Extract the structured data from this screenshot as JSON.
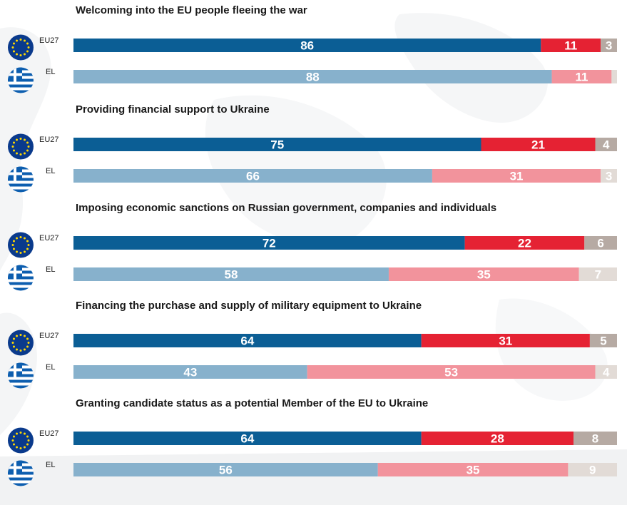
{
  "chart_data": {
    "type": "bar",
    "orientation": "horizontal",
    "stacked": true,
    "xlim": [
      0,
      100
    ],
    "grid": false,
    "legend": "none",
    "questions": [
      {
        "title": "Welcoming into the EU people fleeing the war",
        "rows": [
          {
            "label": "EU27",
            "flag": "eu-flag-icon",
            "values": [
              86,
              11,
              3
            ],
            "labels": [
              "86",
              "11",
              "3"
            ]
          },
          {
            "label": "EL",
            "flag": "greece-flag-icon",
            "values": [
              88,
              11,
              1
            ],
            "labels": [
              "88",
              "11",
              ""
            ]
          }
        ]
      },
      {
        "title": "Providing financial support to Ukraine",
        "rows": [
          {
            "label": "EU27",
            "flag": "eu-flag-icon",
            "values": [
              75,
              21,
              4
            ],
            "labels": [
              "75",
              "21",
              "4"
            ]
          },
          {
            "label": "EL",
            "flag": "greece-flag-icon",
            "values": [
              66,
              31,
              3
            ],
            "labels": [
              "66",
              "31",
              "3"
            ]
          }
        ]
      },
      {
        "title": "Imposing economic sanctions on Russian government, companies and individuals",
        "rows": [
          {
            "label": "EU27",
            "flag": "eu-flag-icon",
            "values": [
              72,
              22,
              6
            ],
            "labels": [
              "72",
              "22",
              "6"
            ]
          },
          {
            "label": "EL",
            "flag": "greece-flag-icon",
            "values": [
              58,
              35,
              7
            ],
            "labels": [
              "58",
              "35",
              "7"
            ]
          }
        ]
      },
      {
        "title": "Financing the purchase and supply of military equipment to Ukraine",
        "rows": [
          {
            "label": "EU27",
            "flag": "eu-flag-icon",
            "values": [
              64,
              31,
              5
            ],
            "labels": [
              "64",
              "31",
              "5"
            ]
          },
          {
            "label": "EL",
            "flag": "greece-flag-icon",
            "values": [
              43,
              53,
              4
            ],
            "labels": [
              "43",
              "53",
              "4"
            ]
          }
        ]
      },
      {
        "title": "Granting candidate status as a potential Member of the EU to Ukraine",
        "rows": [
          {
            "label": "EU27",
            "flag": "eu-flag-icon",
            "values": [
              64,
              28,
              8
            ],
            "labels": [
              "64",
              "28",
              "8"
            ]
          },
          {
            "label": "EL",
            "flag": "greece-flag-icon",
            "values": [
              56,
              35,
              9
            ],
            "labels": [
              "56",
              "35",
              "9"
            ]
          }
        ]
      }
    ],
    "colors": {
      "EU27": [
        "#0b5e95",
        "#e52233",
        "#b6aaa3"
      ],
      "EL": [
        "#87b1cc",
        "#f2939c",
        "#e2dbd6"
      ]
    }
  }
}
